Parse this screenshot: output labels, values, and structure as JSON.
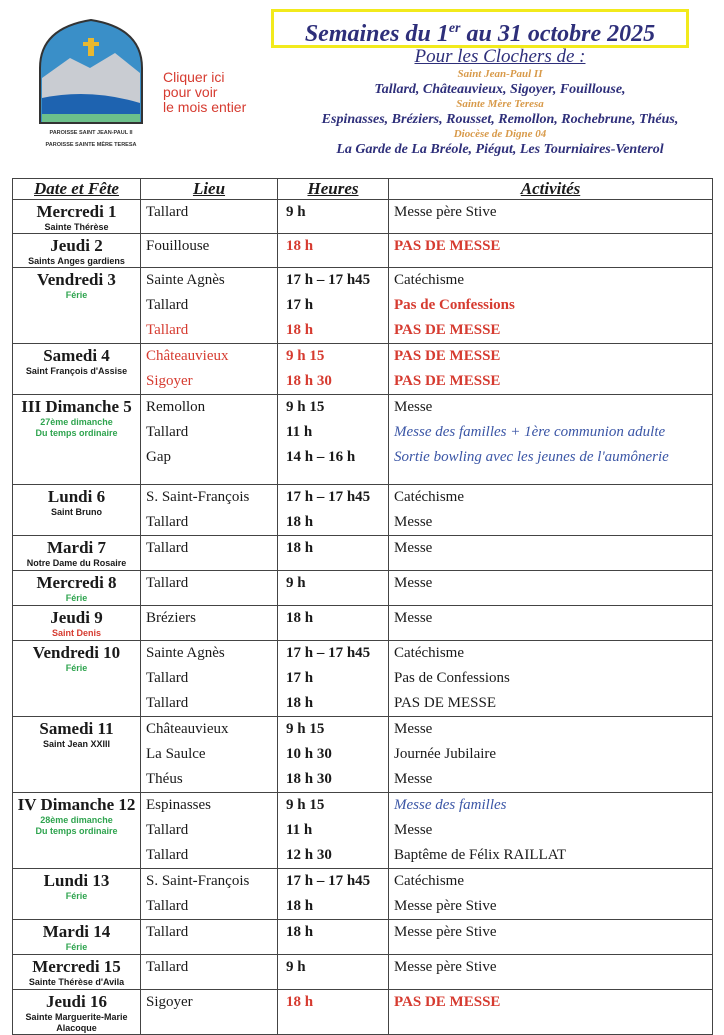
{
  "logo": {
    "text1": "PAROISSE SAINT JEAN-PAUL II",
    "text2": "PAROISSE SAINTE MÈRE TERESA"
  },
  "link": {
    "line1": "Cliquer ici",
    "line2": "pour voir",
    "line3": "le mois entier"
  },
  "title": {
    "pre": "Semaines du 1",
    "sup": "er",
    "post": " au 31 octobre 2025"
  },
  "clochers": {
    "heading": "Pour les Clochers de :",
    "p1": "Saint Jean-Paul II",
    "l1": "Tallard, Châteauvieux, Sigoyer, Fouillouse,",
    "p2": "Sainte Mère Teresa",
    "l2": "Espinasses, Bréziers, Rousset, Remollon, Rochebrune, Théus,",
    "p3": "Diocèse de Digne 04",
    "l3": "La Garde de La Bréole, Piégut, Les Tourniaires-Venterol"
  },
  "colors": {
    "red": "#d63b30",
    "blue": "#3b56a6",
    "green": "#2fa44f",
    "title": "#2e2f7a",
    "frame": "#f2ea1c"
  },
  "headers": [
    "Date et Fête",
    "Lieu",
    "Heures",
    "Activités"
  ],
  "rows": [
    {
      "day": "Mercredi 1",
      "sub": [
        "Sainte Thérèse"
      ],
      "subc": "",
      "lines": [
        [
          "Tallard",
          "9 h",
          "Messe père Stive",
          ""
        ]
      ]
    },
    {
      "day": "Jeudi 2",
      "sub": [
        "Saints Anges gardiens"
      ],
      "subc": "",
      "lines": [
        [
          "Fouillouse",
          "18 h",
          "PAS DE MESSE",
          "red"
        ]
      ]
    },
    {
      "day": "Vendredi 3",
      "sub": [
        "Férie"
      ],
      "subc": "green",
      "lines": [
        [
          "Sainte Agnès",
          "17 h – 17 h45",
          "Catéchisme",
          ""
        ],
        [
          "Tallard",
          "17 h",
          "Pas de Confessions",
          "redact"
        ],
        [
          "Tallard",
          "18 h",
          "PAS DE MESSE",
          "red"
        ]
      ]
    },
    {
      "day": "Samedi 4",
      "sub": [
        "Saint François d'Assise"
      ],
      "subc": "",
      "lines": [
        [
          "Châteauvieux",
          "9 h 15",
          "PAS DE MESSE",
          "red"
        ],
        [
          "Sigoyer",
          "18 h 30",
          "PAS DE MESSE",
          "red"
        ]
      ]
    },
    {
      "day": "III Dimanche 5",
      "sub": [
        "27ème dimanche",
        "Du temps ordinaire"
      ],
      "subc": "green",
      "lines": [
        [
          "Remollon",
          "9 h 15",
          "Messe",
          ""
        ],
        [
          "Tallard",
          "11 h",
          "Messe des familles + 1ère communion adulte",
          "blue"
        ],
        [
          "Gap",
          "14 h – 16 h",
          "Sortie bowling avec les jeunes de l'aumônerie",
          "blue"
        ]
      ]
    },
    {
      "day": "Lundi 6",
      "sub": [
        "Saint Bruno"
      ],
      "subc": "",
      "lines": [
        [
          "S. Saint-François",
          "17 h – 17 h45",
          "Catéchisme",
          ""
        ],
        [
          "Tallard",
          "18 h",
          "Messe",
          ""
        ]
      ]
    },
    {
      "day": "Mardi 7",
      "sub": [
        "Notre Dame du Rosaire"
      ],
      "subc": "",
      "lines": [
        [
          "Tallard",
          "18 h",
          "Messe",
          ""
        ]
      ]
    },
    {
      "day": "Mercredi 8",
      "sub": [
        "Férie"
      ],
      "subc": "green",
      "lines": [
        [
          "Tallard",
          "9 h",
          "Messe",
          ""
        ]
      ]
    },
    {
      "day": "Jeudi 9",
      "sub": [
        "Saint Denis"
      ],
      "subc": "red",
      "lines": [
        [
          "Bréziers",
          "18 h",
          "Messe",
          ""
        ]
      ]
    },
    {
      "day": "Vendredi 10",
      "sub": [
        "Férie"
      ],
      "subc": "green",
      "lines": [
        [
          "Sainte Agnès",
          "17 h – 17 h45",
          "Catéchisme",
          ""
        ],
        [
          "Tallard",
          "17 h",
          "Pas de Confessions",
          ""
        ],
        [
          "Tallard",
          "18 h",
          "PAS DE MESSE",
          ""
        ]
      ]
    },
    {
      "day": "Samedi 11",
      "sub": [
        "Saint Jean XXIII"
      ],
      "subc": "",
      "lines": [
        [
          "Châteauvieux",
          "9 h 15",
          "Messe",
          ""
        ],
        [
          "La Saulce",
          "10 h 30",
          "Journée Jubilaire",
          ""
        ],
        [
          "Théus",
          "18 h 30",
          "Messe",
          ""
        ]
      ]
    },
    {
      "day": "IV Dimanche 12",
      "sub": [
        "28ème dimanche",
        "Du temps ordinaire"
      ],
      "subc": "green",
      "lines": [
        [
          "Espinasses",
          "9 h 15",
          "Messe des familles",
          "blue"
        ],
        [
          "Tallard",
          "11 h",
          "Messe",
          ""
        ],
        [
          "Tallard",
          "12 h 30",
          "Baptême de Félix RAILLAT",
          ""
        ]
      ]
    },
    {
      "day": "Lundi 13",
      "sub": [
        "Férie"
      ],
      "subc": "green",
      "lines": [
        [
          "S. Saint-François",
          "17 h – 17 h45",
          "Catéchisme",
          ""
        ],
        [
          "Tallard",
          "18 h",
          "Messe père Stive",
          ""
        ]
      ]
    },
    {
      "day": "Mardi 14",
      "sub": [
        "Férie"
      ],
      "subc": "green",
      "lines": [
        [
          "Tallard",
          "18 h",
          "Messe père Stive",
          ""
        ]
      ]
    },
    {
      "day": "Mercredi 15",
      "sub": [
        "Sainte Thérèse d'Avila"
      ],
      "subc": "",
      "lines": [
        [
          "Tallard",
          "9 h",
          "Messe père Stive",
          ""
        ]
      ]
    },
    {
      "day": "Jeudi 16",
      "sub": [
        "Sainte Marguerite-Marie",
        "Alacoque"
      ],
      "subc": "",
      "lines": [
        [
          "Sigoyer",
          "18 h",
          "PAS DE MESSE",
          "red"
        ]
      ]
    }
  ]
}
